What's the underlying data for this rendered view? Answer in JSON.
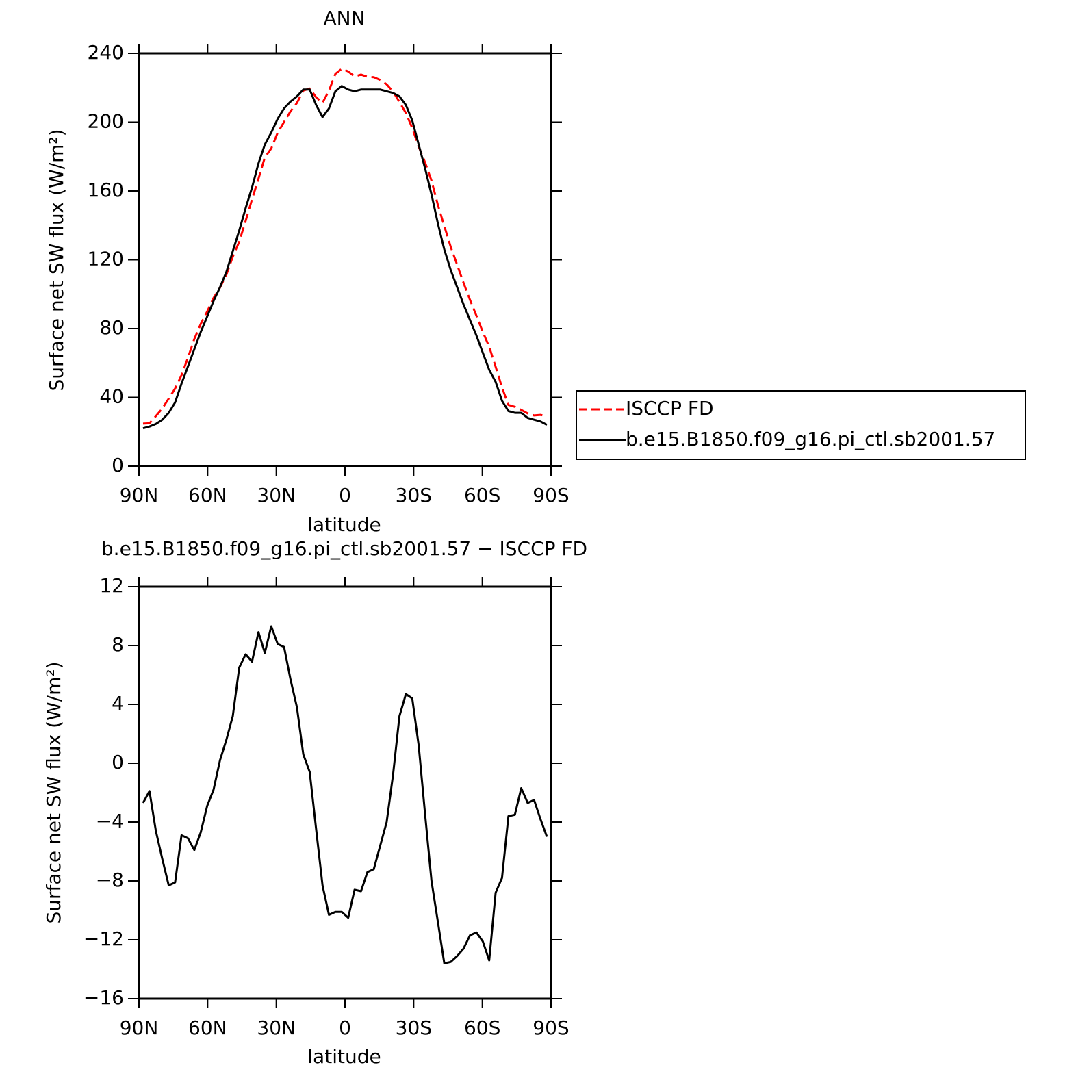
{
  "chart_data": [
    {
      "type": "line",
      "title": "ANN",
      "x_label": "latitude",
      "y_label": "Surface net SW flux (W/m²)",
      "xlim": [
        90,
        -90
      ],
      "xticks": [
        {
          "value": 90,
          "label": "90N"
        },
        {
          "value": 60,
          "label": "60N"
        },
        {
          "value": 30,
          "label": "30N"
        },
        0,
        {
          "value": -30,
          "label": "30S"
        },
        {
          "value": -60,
          "label": "60S"
        },
        {
          "value": -90,
          "label": "90S"
        }
      ],
      "ylim": [
        0,
        240
      ],
      "yticks": [
        0,
        40,
        80,
        120,
        160,
        200,
        240
      ],
      "legend": "right",
      "x": [
        88.2,
        85.4,
        82.6,
        79.8,
        77,
        74.2,
        71.4,
        68.6,
        65.8,
        63,
        60.2,
        57.4,
        54.6,
        51.8,
        49,
        46.2,
        43.4,
        40.6,
        37.8,
        35,
        32.2,
        29.4,
        26.6,
        23.8,
        21,
        18.2,
        15.4,
        12.6,
        9.8,
        7,
        4.2,
        1.4,
        -1.4,
        -4.2,
        -7,
        -9.8,
        -12.6,
        -15.4,
        -18.2,
        -21,
        -23.8,
        -26.6,
        -29.4,
        -32.2,
        -35,
        -37.8,
        -40.6,
        -43.4,
        -46.2,
        -49,
        -51.8,
        -54.6,
        -57.4,
        -60.2,
        -63,
        -65.8,
        -68.6,
        -71.4,
        -74.2,
        -77,
        -79.8,
        -82.6,
        -85.4,
        -88.2
      ],
      "series": [
        {
          "name": "ISCCP FD",
          "color": "#ff0000",
          "dashed": true,
          "values": [
            24.7,
            24.9,
            29.1,
            33.5,
            39.3,
            45.1,
            52.9,
            63.1,
            73.9,
            82.7,
            89.9,
            97.8,
            103.8,
            111.4,
            121.8,
            130.5,
            142.6,
            155.1,
            167.1,
            179.5,
            184.7,
            193.9,
            200.1,
            206.3,
            211.2,
            218.4,
            219.6,
            214.5,
            211.3,
            218.3,
            228.1,
            231.1,
            229.5,
            226.6,
            227.7,
            226.4,
            226.2,
            224.6,
            222,
            217.8,
            211.8,
            205.3,
            196.6,
            185.8,
            176.5,
            166,
            151.8,
            139.6,
            127.5,
            117.1,
            106.6,
            96.7,
            87.5,
            78.1,
            69.4,
            57.8,
            45.8,
            35.6,
            34.5,
            32.7,
            30.7,
            29.5,
            29.8,
            29
          ]
        },
        {
          "name": "b.e15.B1850.f09_g16.pi_ctl.sb2001.57",
          "color": "#000000",
          "dashed": false,
          "values": [
            22,
            23,
            24.5,
            27,
            31,
            37,
            48,
            58,
            68,
            78,
            87,
            96,
            104,
            113,
            125,
            137,
            150,
            162,
            176,
            187,
            194,
            202,
            208,
            212,
            215,
            219,
            219,
            210,
            203,
            208,
            218,
            221,
            219,
            218,
            219,
            219,
            219,
            219,
            218,
            217,
            215,
            210,
            201,
            187,
            173,
            158,
            141,
            126,
            114,
            104,
            94,
            85,
            76,
            66,
            56,
            49,
            38,
            32,
            31,
            31,
            28,
            27,
            26,
            24
          ]
        }
      ]
    },
    {
      "type": "line",
      "title": "b.e15.B1850.f09_g16.pi_ctl.sb2001.57 − ISCCP FD",
      "x_label": "latitude",
      "y_label": "Surface net SW flux (W/m²)",
      "xlim": [
        90,
        -90
      ],
      "xticks": [
        {
          "value": 90,
          "label": "90N"
        },
        {
          "value": 60,
          "label": "60N"
        },
        {
          "value": 30,
          "label": "30N"
        },
        0,
        {
          "value": -30,
          "label": "30S"
        },
        {
          "value": -60,
          "label": "60S"
        },
        {
          "value": -90,
          "label": "90S"
        }
      ],
      "ylim": [
        -16,
        12
      ],
      "yticks": [
        {
          "value": -16,
          "label": "−16"
        },
        {
          "value": -12,
          "label": "−12"
        },
        {
          "value": -8,
          "label": "−8"
        },
        {
          "value": -4,
          "label": "−4"
        },
        0,
        4,
        8,
        12
      ],
      "color": "#000000",
      "x": [
        88.2,
        85.4,
        82.6,
        79.8,
        77,
        74.2,
        71.4,
        68.6,
        65.8,
        63,
        60.2,
        57.4,
        54.6,
        51.8,
        49,
        46.2,
        43.4,
        40.6,
        37.8,
        35,
        32.2,
        29.4,
        26.6,
        23.8,
        21,
        18.2,
        15.4,
        12.6,
        9.8,
        7,
        4.2,
        1.4,
        -1.4,
        -4.2,
        -7,
        -9.8,
        -12.6,
        -15.4,
        -18.2,
        -21,
        -23.8,
        -26.6,
        -29.4,
        -32.2,
        -35,
        -37.8,
        -40.6,
        -43.4,
        -46.2,
        -49,
        -51.8,
        -54.6,
        -57.4,
        -60.2,
        -63,
        -65.8,
        -68.6,
        -71.4,
        -74.2,
        -77,
        -79.8,
        -82.6,
        -85.4,
        -88.2
      ],
      "values": [
        -2.7,
        -1.9,
        -4.6,
        -6.5,
        -8.3,
        -8.1,
        -4.9,
        -5.1,
        -5.9,
        -4.7,
        -2.9,
        -1.8,
        0.2,
        1.6,
        3.2,
        6.5,
        7.4,
        6.9,
        8.9,
        7.5,
        9.3,
        8.1,
        7.9,
        5.7,
        3.8,
        0.6,
        -0.6,
        -4.5,
        -8.3,
        -10.3,
        -10.1,
        -10.1,
        -10.5,
        -8.6,
        -8.7,
        -7.4,
        -7.2,
        -5.6,
        -4.0,
        -0.8,
        3.2,
        4.7,
        4.4,
        1.2,
        -3.5,
        -8.0,
        -10.8,
        -13.6,
        -13.5,
        -13.1,
        -12.6,
        -11.7,
        -11.5,
        -12.1,
        -13.4,
        -8.8,
        -7.8,
        -3.6,
        -3.5,
        -1.7,
        -2.7,
        -2.5,
        -3.8,
        -5.0
      ]
    }
  ]
}
